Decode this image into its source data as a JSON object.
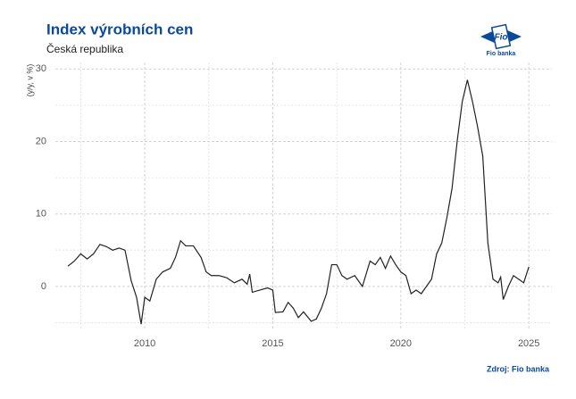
{
  "chart_data": {
    "type": "line",
    "title": "Index výrobních cen",
    "subtitle": "Česká republika",
    "y_label": "(y/y, v %)",
    "source": "Zdroj: Fio banka",
    "logo": {
      "mark": "Fio",
      "text": "Fio banka"
    },
    "x": [
      2007.0,
      2007.25,
      2007.5,
      2007.75,
      2008.0,
      2008.25,
      2008.5,
      2008.75,
      2009.0,
      2009.23,
      2009.47,
      2009.68,
      2009.86,
      2010.0,
      2010.2,
      2010.45,
      2010.7,
      2011.0,
      2011.2,
      2011.4,
      2011.6,
      2011.9,
      2012.2,
      2012.4,
      2012.6,
      2012.9,
      2013.2,
      2013.5,
      2013.8,
      2014.0,
      2014.1,
      2014.2,
      2014.5,
      2014.8,
      2015.0,
      2015.1,
      2015.4,
      2015.6,
      2015.8,
      2016.0,
      2016.2,
      2016.5,
      2016.7,
      2016.9,
      2017.1,
      2017.3,
      2017.5,
      2017.7,
      2017.9,
      2018.2,
      2018.5,
      2018.8,
      2019.0,
      2019.2,
      2019.4,
      2019.6,
      2019.8,
      2020.0,
      2020.2,
      2020.4,
      2020.6,
      2020.8,
      2021.0,
      2021.2,
      2021.4,
      2021.6,
      2021.8,
      2022.0,
      2022.2,
      2022.4,
      2022.6,
      2022.8,
      2023.0,
      2023.2,
      2023.4,
      2023.6,
      2023.8,
      2023.9,
      2024.0,
      2024.2,
      2024.4,
      2024.6,
      2024.8,
      2025.0
    ],
    "series": [
      {
        "name": "Index výrobních cen",
        "color": "#222222",
        "values": [
          2.8,
          3.5,
          4.5,
          3.8,
          4.5,
          5.8,
          5.5,
          5.0,
          5.3,
          5.0,
          0.8,
          -1.5,
          -5.2,
          -1.5,
          -2.0,
          1.0,
          2.0,
          2.5,
          4.0,
          6.3,
          5.6,
          5.6,
          4.0,
          2.0,
          1.5,
          1.5,
          1.2,
          0.5,
          1.0,
          0.3,
          1.7,
          -0.8,
          -0.5,
          -0.2,
          -0.5,
          -3.6,
          -3.5,
          -2.2,
          -3.0,
          -4.3,
          -3.5,
          -4.8,
          -4.5,
          -3.0,
          -1.0,
          3.0,
          3.0,
          1.5,
          1.0,
          1.5,
          0.0,
          3.5,
          3.0,
          4.0,
          2.5,
          4.2,
          3.0,
          2.0,
          1.5,
          -1.0,
          -0.5,
          -1.0,
          0.0,
          1.0,
          4.5,
          6.0,
          9.5,
          13.5,
          20.0,
          25.5,
          28.5,
          25.5,
          22.0,
          18.0,
          6.0,
          1.0,
          0.5,
          1.3,
          -1.8,
          0.0,
          1.5,
          1.0,
          0.5,
          2.7
        ]
      }
    ],
    "xlim": [
      2006.51,
      2025.9
    ],
    "xticks": [
      2010,
      2015,
      2020,
      2025
    ],
    "ylim": [
      -5.8,
      30.9
    ],
    "yticks": [
      0,
      10,
      20,
      30
    ],
    "grid": true
  }
}
